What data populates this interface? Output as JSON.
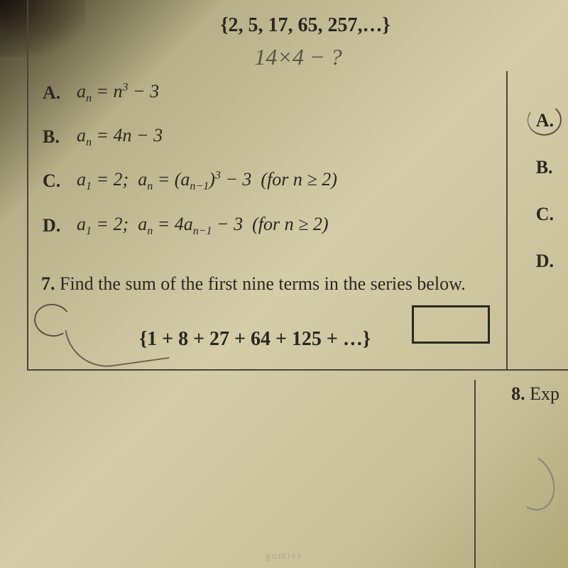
{
  "sequence": {
    "display": "{2, 5, 17, 65, 257,…}",
    "fontsize": 28,
    "fontweight": "bold",
    "color": "#2a2820"
  },
  "handwritten_note": {
    "text": "14×4 − ?",
    "color": "#5a5548",
    "fontsize": 32
  },
  "choices": [
    {
      "label": "A.",
      "formula_html": "a_n = n^3 − 3"
    },
    {
      "label": "B.",
      "formula_html": "a_n = 4n − 3"
    },
    {
      "label": "C.",
      "formula_html": "a_1 = 2;  a_n = (a_{n−1})^3 − 3  (for n ≥ 2)"
    },
    {
      "label": "D.",
      "formula_html": "a_1 = 2;  a_n = 4a_{n−1} − 3  (for n ≥ 2)"
    }
  ],
  "right_labels": [
    "A.",
    "B.",
    "C.",
    "D."
  ],
  "circled_right": "A",
  "circled_left": "D",
  "answer_box": {
    "border_color": "#2a2820",
    "border_width": 3,
    "width": 110,
    "height": 54
  },
  "divider": {
    "color": "#4a4538",
    "width": 2
  },
  "q7": {
    "number": "7.",
    "prompt": "Find the sum of the first nine terms in the series below.",
    "series": "{1 + 8 + 27 + 64 + 125 + …}",
    "series_fontsize": 28
  },
  "q8": {
    "number": "8.",
    "partial_text": "Exp"
  },
  "background": {
    "gradient_colors": [
      "#3a3828",
      "#6b6548",
      "#b8b088",
      "#d4cda8",
      "#c8c098",
      "#b0a878"
    ]
  },
  "watermark": "gumies"
}
